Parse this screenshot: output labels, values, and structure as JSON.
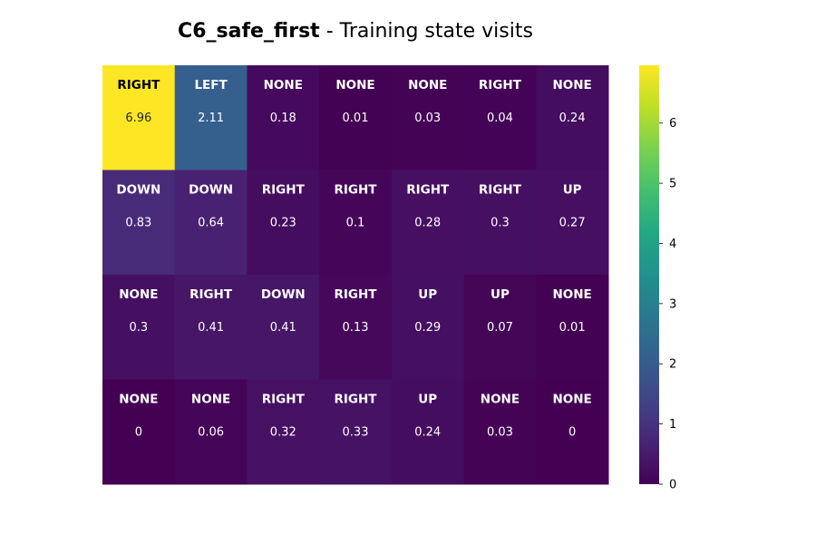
{
  "chart_data": {
    "type": "heatmap",
    "title_bold": "C6_safe_first",
    "title_rest": " - Training state visits",
    "rows": 4,
    "cols": 7,
    "actions": [
      [
        "RIGHT",
        "LEFT",
        "NONE",
        "NONE",
        "NONE",
        "RIGHT",
        "NONE"
      ],
      [
        "DOWN",
        "DOWN",
        "RIGHT",
        "RIGHT",
        "RIGHT",
        "RIGHT",
        "UP"
      ],
      [
        "NONE",
        "RIGHT",
        "DOWN",
        "RIGHT",
        "UP",
        "UP",
        "NONE"
      ],
      [
        "NONE",
        "NONE",
        "RIGHT",
        "RIGHT",
        "UP",
        "NONE",
        "NONE"
      ]
    ],
    "values": [
      [
        6.96,
        2.11,
        0.18,
        0.01,
        0.03,
        0.04,
        0.24
      ],
      [
        0.83,
        0.64,
        0.23,
        0.1,
        0.28,
        0.3,
        0.27
      ],
      [
        0.3,
        0.41,
        0.41,
        0.13,
        0.29,
        0.07,
        0.01
      ],
      [
        0,
        0.06,
        0.32,
        0.33,
        0.24,
        0.03,
        0
      ]
    ],
    "value_labels": [
      [
        "6.96",
        "2.11",
        "0.18",
        "0.01",
        "0.03",
        "0.04",
        "0.24"
      ],
      [
        "0.83",
        "0.64",
        "0.23",
        "0.1",
        "0.28",
        "0.3",
        "0.27"
      ],
      [
        "0.3",
        "0.41",
        "0.41",
        "0.13",
        "0.29",
        "0.07",
        "0.01"
      ],
      [
        "0",
        "0.06",
        "0.32",
        "0.33",
        "0.24",
        "0.03",
        "0"
      ]
    ],
    "colormap": "viridis",
    "vmin": 0,
    "vmax": 6.96,
    "colorbar_ticks": [
      "0",
      "1",
      "2",
      "3",
      "4",
      "5",
      "6"
    ],
    "grid": false
  }
}
